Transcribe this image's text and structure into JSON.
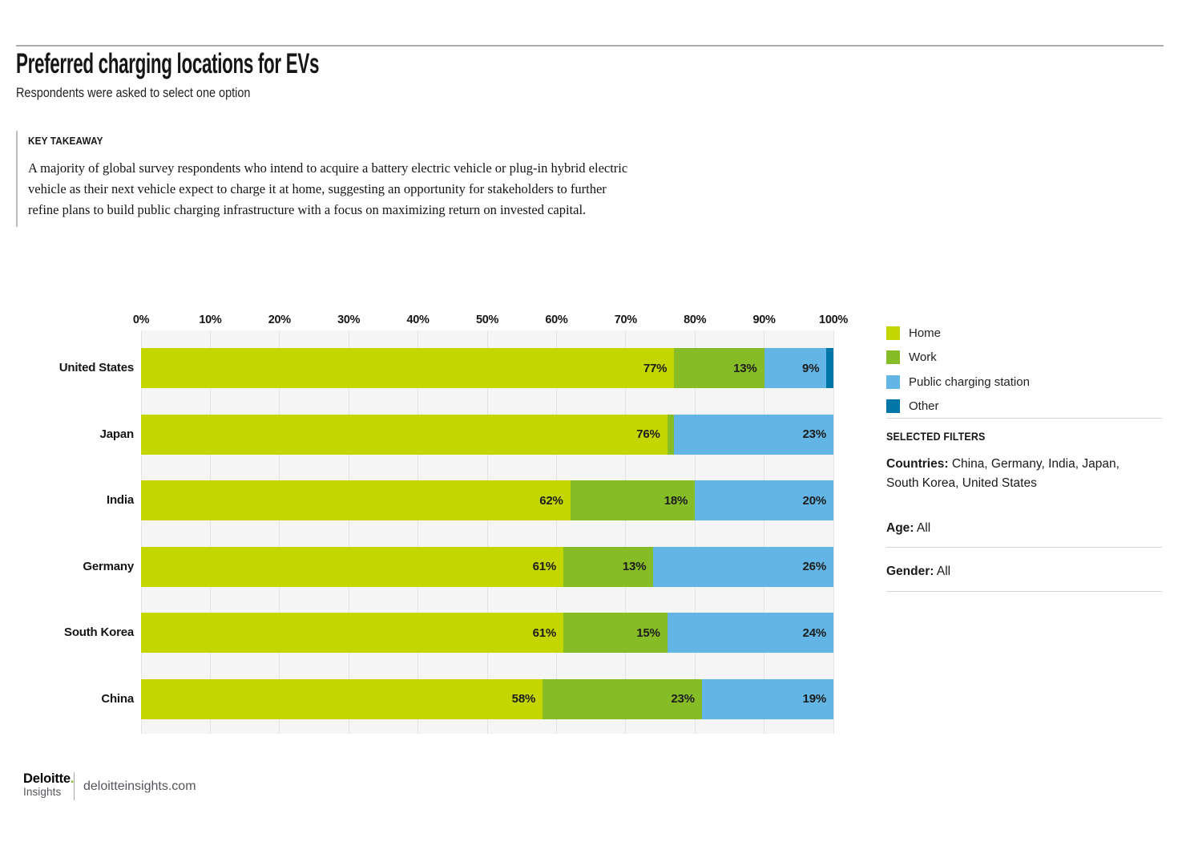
{
  "header": {
    "title": "Preferred charging locations for EVs",
    "subtitle": "Respondents were asked to select one option"
  },
  "key_takeaway": {
    "label": "KEY TAKEAWAY",
    "text": "A majority of global survey respondents who intend to acquire a battery electric vehicle or plug-in hybrid electric\nvehicle as their next vehicle expect to charge it at home, suggesting an opportunity for stakeholders to further\nrefine plans to build public charging infrastructure with a focus on maximizing return on invested capital."
  },
  "chart_data": {
    "type": "bar",
    "orientation": "horizontal",
    "stacked": true,
    "categories": [
      "United States",
      "Japan",
      "India",
      "Germany",
      "South Korea",
      "China"
    ],
    "series": [
      {
        "name": "Home",
        "color": "#c4d600",
        "values": [
          77,
          76,
          62,
          61,
          61,
          58
        ]
      },
      {
        "name": "Work",
        "color": "#86bc25",
        "values": [
          13,
          1,
          18,
          13,
          15,
          23
        ]
      },
      {
        "name": "Public charging station",
        "color": "#62b5e5",
        "values": [
          9,
          23,
          20,
          26,
          24,
          19
        ]
      },
      {
        "name": "Other",
        "color": "#0076a8",
        "values": [
          1,
          0,
          0,
          0,
          0,
          0
        ]
      }
    ],
    "x_ticks": [
      "0%",
      "10%",
      "20%",
      "30%",
      "40%",
      "50%",
      "60%",
      "70%",
      "80%",
      "90%",
      "100%"
    ],
    "xlim": [
      0,
      100
    ],
    "grid": true,
    "legend_position": "right",
    "value_label_format": "{v}%",
    "min_value_for_label": 5
  },
  "filters": {
    "heading": "SELECTED FILTERS",
    "countries_label": "Countries:",
    "countries_value": "China, Germany, India, Japan,\nSouth Korea, United States",
    "age_label": "Age:",
    "age_value": "All",
    "gender_label": "Gender:",
    "gender_value": "All"
  },
  "footer": {
    "brand": "Deloitte",
    "brand_dot": ".",
    "brand_sub": "Insights",
    "site": "deloitteinsights.com"
  }
}
